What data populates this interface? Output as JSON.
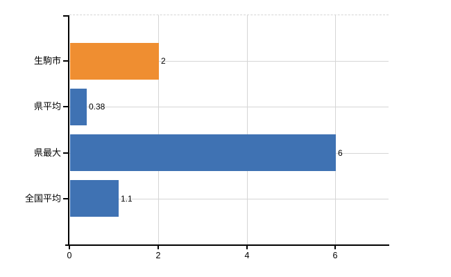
{
  "chart_data": {
    "type": "bar",
    "orientation": "horizontal",
    "title": "",
    "xlabel": "",
    "ylabel": "",
    "categories": [
      "生駒市",
      "県平均",
      "県最大",
      "全国平均"
    ],
    "values": [
      2,
      0.38,
      6,
      1.1
    ],
    "value_labels": [
      "2",
      "0.38",
      "6",
      "1.1"
    ],
    "bar_colors": [
      "#ef8e31",
      "#3f72b3",
      "#3f72b3",
      "#3f72b3"
    ],
    "xlim": [
      0,
      7.2
    ],
    "xticks": [
      0,
      2,
      4,
      6
    ],
    "xtick_labels": [
      "0",
      "2",
      "4",
      "6"
    ],
    "grid": true,
    "legend": null,
    "colors": {
      "highlight_bar": "#ef8e31",
      "default_bar": "#3f72b3",
      "gridline": "#d5d5d5",
      "axis": "#000000",
      "text": "#000000",
      "background": "#ffffff"
    }
  }
}
